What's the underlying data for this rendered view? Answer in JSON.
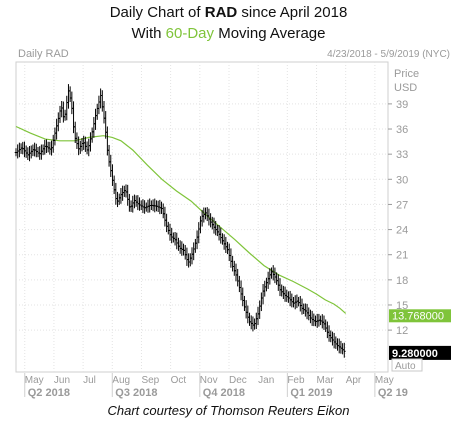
{
  "heading": {
    "line1_prefix": "Daily Chart of ",
    "line1_ticker": "RAD",
    "line1_suffix": " since April 2018",
    "line2_prefix": "With ",
    "line2_ma": "60-Day",
    "line2_suffix": " Moving Average"
  },
  "footer": "Chart courtesy of Thomson Reuters Eikon",
  "chart_data": {
    "type": "ohlc",
    "chart_label": "Daily RAD",
    "date_range": "4/23/2018 - 5/9/2019 (NYC)",
    "y_axis_title": [
      "Price",
      "USD"
    ],
    "y_axis_position": "right",
    "ylim": [
      7,
      44
    ],
    "y_ticks": [
      12,
      15,
      18,
      21,
      24,
      27,
      30,
      33,
      36,
      39
    ],
    "x_months": [
      "May",
      "Jun",
      "Jul",
      "Aug",
      "Sep",
      "Oct",
      "Nov",
      "Dec",
      "Jan",
      "Feb",
      "Mar",
      "Apr",
      "May"
    ],
    "x_month_t": [
      0.3,
      1.3,
      2.3,
      3.3,
      4.3,
      5.3,
      6.3,
      7.3,
      8.3,
      9.3,
      10.3,
      11.3,
      12.3
    ],
    "quarters": [
      "Q2 2018",
      "Q3 2018",
      "Q4 2018",
      "Q1 2019",
      "Q2 19"
    ],
    "quarter_t": [
      0.3,
      3.3,
      6.3,
      9.3,
      12.3
    ],
    "grid": true,
    "series": [
      {
        "name": "RAD",
        "kind": "price",
        "color": "#000000",
        "points": [
          [
            0.0,
            33.2
          ],
          [
            0.2,
            33.8
          ],
          [
            0.4,
            32.9
          ],
          [
            0.6,
            33.6
          ],
          [
            0.8,
            33.0
          ],
          [
            1.0,
            34.0
          ],
          [
            1.2,
            33.5
          ],
          [
            1.4,
            36.5
          ],
          [
            1.55,
            38.8
          ],
          [
            1.65,
            37.0
          ],
          [
            1.8,
            40.6
          ],
          [
            1.9,
            39.0
          ],
          [
            2.0,
            35.2
          ],
          [
            2.15,
            33.6
          ],
          [
            2.3,
            34.5
          ],
          [
            2.45,
            33.4
          ],
          [
            2.6,
            35.5
          ],
          [
            2.75,
            38.0
          ],
          [
            2.9,
            40.0
          ],
          [
            3.05,
            36.5
          ],
          [
            3.15,
            32.8
          ],
          [
            3.25,
            31.0
          ],
          [
            3.35,
            29.0
          ],
          [
            3.45,
            27.2
          ],
          [
            3.6,
            28.2
          ],
          [
            3.75,
            28.8
          ],
          [
            3.9,
            26.5
          ],
          [
            4.05,
            27.5
          ],
          [
            4.2,
            27.0
          ],
          [
            4.4,
            26.6
          ],
          [
            4.6,
            26.9
          ],
          [
            4.8,
            26.8
          ],
          [
            5.0,
            26.5
          ],
          [
            5.15,
            24.5
          ],
          [
            5.3,
            23.2
          ],
          [
            5.45,
            22.8
          ],
          [
            5.6,
            21.8
          ],
          [
            5.75,
            21.5
          ],
          [
            5.9,
            20.0
          ],
          [
            6.05,
            21.2
          ],
          [
            6.2,
            23.0
          ],
          [
            6.35,
            25.5
          ],
          [
            6.5,
            26.0
          ],
          [
            6.65,
            25.0
          ],
          [
            6.8,
            24.2
          ],
          [
            6.95,
            23.5
          ],
          [
            7.1,
            22.5
          ],
          [
            7.25,
            21.6
          ],
          [
            7.4,
            19.8
          ],
          [
            7.55,
            18.5
          ],
          [
            7.7,
            16.5
          ],
          [
            7.85,
            14.5
          ],
          [
            8.0,
            13.0
          ],
          [
            8.15,
            12.5
          ],
          [
            8.3,
            14.0
          ],
          [
            8.45,
            16.5
          ],
          [
            8.6,
            17.8
          ],
          [
            8.75,
            19.0
          ],
          [
            8.9,
            18.2
          ],
          [
            9.05,
            16.8
          ],
          [
            9.2,
            16.2
          ],
          [
            9.35,
            15.8
          ],
          [
            9.5,
            15.2
          ],
          [
            9.65,
            15.5
          ],
          [
            9.8,
            14.6
          ],
          [
            9.95,
            14.2
          ],
          [
            10.1,
            13.4
          ],
          [
            10.25,
            13.0
          ],
          [
            10.4,
            13.2
          ],
          [
            10.55,
            12.8
          ],
          [
            10.7,
            11.5
          ],
          [
            10.85,
            10.8
          ],
          [
            11.0,
            10.2
          ],
          [
            11.15,
            9.8
          ],
          [
            11.3,
            9.3
          ]
        ]
      },
      {
        "name": "60-Day Moving Average",
        "kind": "line",
        "color": "#7fc43a",
        "points": [
          [
            0.0,
            36.3
          ],
          [
            0.5,
            35.5
          ],
          [
            1.0,
            34.8
          ],
          [
            1.5,
            34.6
          ],
          [
            2.0,
            34.6
          ],
          [
            2.5,
            35.0
          ],
          [
            3.0,
            35.2
          ],
          [
            3.3,
            35.0
          ],
          [
            3.6,
            34.6
          ],
          [
            4.0,
            33.5
          ],
          [
            4.5,
            31.7
          ],
          [
            5.0,
            30.0
          ],
          [
            5.5,
            28.6
          ],
          [
            6.0,
            27.4
          ],
          [
            6.5,
            25.8
          ],
          [
            7.0,
            24.3
          ],
          [
            7.5,
            22.8
          ],
          [
            8.0,
            21.2
          ],
          [
            8.5,
            19.7
          ],
          [
            9.0,
            18.6
          ],
          [
            9.5,
            17.8
          ],
          [
            10.0,
            16.9
          ],
          [
            10.3,
            16.3
          ],
          [
            10.6,
            15.6
          ],
          [
            10.9,
            15.1
          ],
          [
            11.1,
            14.6
          ],
          [
            11.3,
            14.0
          ]
        ]
      }
    ],
    "last_price_label": "9.280000",
    "last_price_value": 9.28,
    "ma_price_label": "13.768000",
    "ma_price_value": 13.768,
    "auto_label": "Auto"
  }
}
